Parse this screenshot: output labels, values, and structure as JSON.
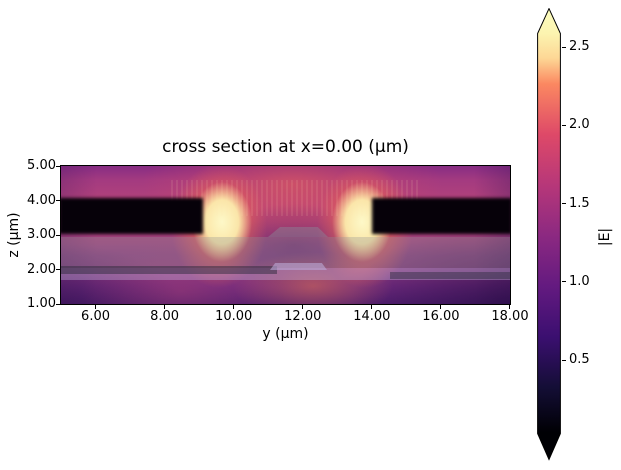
{
  "figure": {
    "title": "cross section at x=0.00 (μm)",
    "background": "#ffffff"
  },
  "axes": {
    "xlabel": "y (μm)",
    "ylabel": "z (μm)",
    "x_ticks": [
      "6.00",
      "8.00",
      "10.00",
      "12.00",
      "14.00",
      "16.00",
      "18.00"
    ],
    "x_tick_values": [
      6,
      8,
      10,
      12,
      14,
      16,
      18
    ],
    "y_ticks": [
      "5.00",
      "4.00",
      "3.00",
      "2.00",
      "1.00"
    ],
    "y_tick_values": [
      5,
      4,
      3,
      2,
      1
    ],
    "x_range_um": [
      5,
      18
    ],
    "z_range_um": [
      1,
      5
    ]
  },
  "colorbar": {
    "label": "|E|",
    "ticks": [
      "0.5",
      "1.0",
      "1.5",
      "2.0",
      "2.5"
    ],
    "tick_values": [
      0.5,
      1.0,
      1.5,
      2.0,
      2.5
    ],
    "colormap": "magma",
    "extend": "both",
    "over_color": "#fcfdbf",
    "under_color": "#000004"
  },
  "colors": {
    "hotspot": "#fdf8c8",
    "halo_orange": "#fa9e55",
    "background_pink": "#b5477a",
    "background_purple_top": "#872c83",
    "background_purple_bottom": "#531f70",
    "slab_black": "#060109",
    "structure_gray": "rgba(145,145,150,0.32)",
    "film_lavender": "rgba(196,182,220,0.38)"
  },
  "chart_data": {
    "type": "heatmap",
    "title": "cross section at x=0.00 (μm)",
    "xlabel": "y (μm)",
    "ylabel": "z (μm)",
    "x_range_um": [
      5,
      18
    ],
    "z_range_um": [
      1,
      5
    ],
    "colormap": "magma",
    "colorbar_label": "|E|",
    "colorbar_ticks": [
      0.5,
      1.0,
      1.5,
      2.0,
      2.5
    ],
    "colorbar_extend": "both",
    "value_range_shown": [
      0.0,
      2.6
    ],
    "features": [
      {
        "name": "metal-slab-left",
        "y_um": [
          5.0,
          9.1
        ],
        "z_um": [
          3.0,
          4.05
        ],
        "field": "~0 (black)"
      },
      {
        "name": "metal-slab-right",
        "y_um": [
          14.0,
          18.0
        ],
        "z_um": [
          3.0,
          4.05
        ],
        "field": "~0 (black)"
      },
      {
        "name": "hotspot-left",
        "center_y_um": 9.6,
        "center_z_um": 3.55,
        "field": ">2.5 (saturated bright)"
      },
      {
        "name": "hotspot-right",
        "center_y_um": 13.6,
        "center_z_um": 3.55,
        "field": ">2.5 (saturated bright)"
      },
      {
        "name": "waveguide-ridge-trapezoid",
        "y_um": [
          11.0,
          12.7
        ],
        "z_um": [
          2.95,
          3.25
        ],
        "overlay": "semi-transparent gray structure"
      },
      {
        "name": "slab-layer-overlay",
        "y_um": [
          5.0,
          18.0
        ],
        "z_um": [
          2.05,
          2.95
        ],
        "overlay": "semi-transparent gray structure"
      },
      {
        "name": "lower-trapezoid",
        "y_um": [
          11.05,
          12.6
        ],
        "z_um": [
          1.95,
          2.2
        ],
        "overlay": "light lavender structure"
      },
      {
        "name": "thin-film-band",
        "y_um": [
          5.0,
          18.0
        ],
        "z_um": [
          1.7,
          2.05
        ],
        "field": "dark stripe (low field) over light band"
      },
      {
        "name": "background-field",
        "field": "0.8 - 1.5 (purple to pink)"
      },
      {
        "name": "bottom-corners",
        "field": "~0.5 (dark indigo)"
      }
    ]
  }
}
